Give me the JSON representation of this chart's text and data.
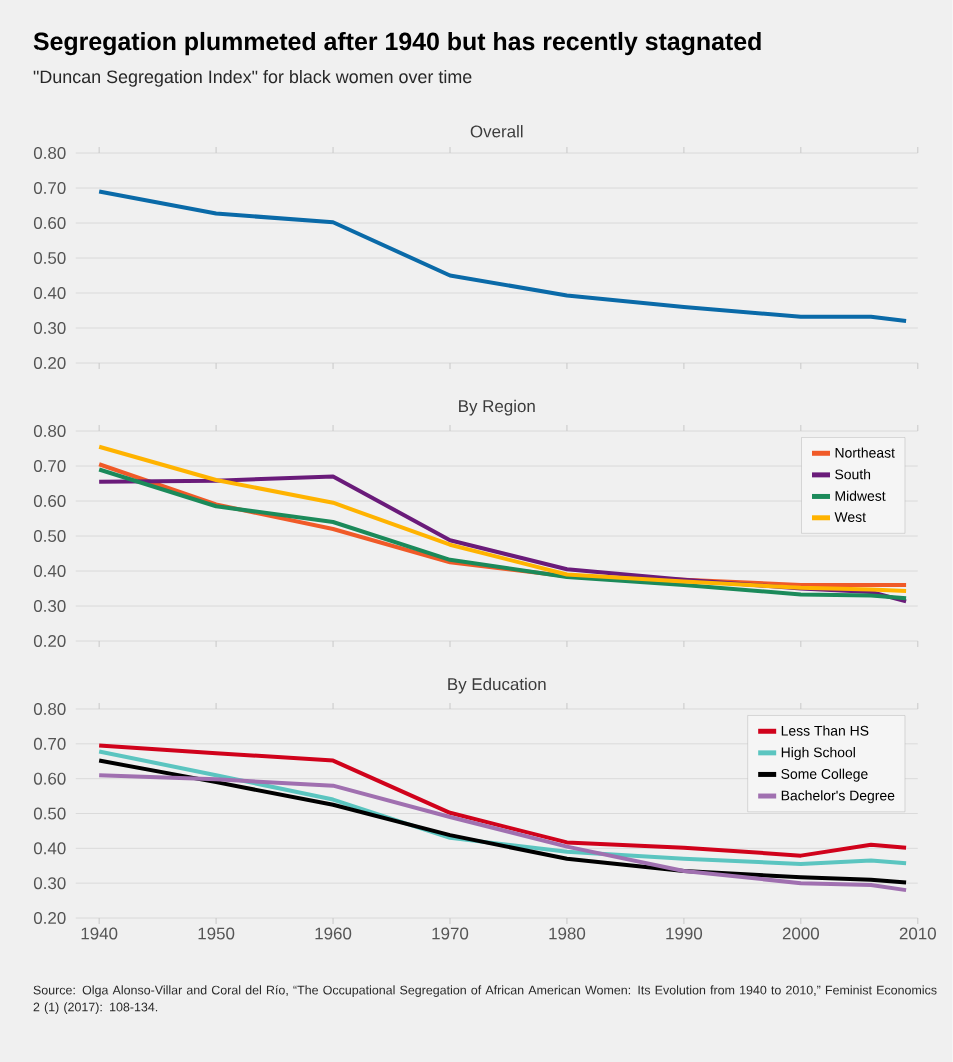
{
  "chart_data": [
    {
      "type": "line",
      "title": "Overall",
      "annotations": [
        "Segregation plummeted after 1940 but has recently stagnated",
        "\"Duncan Segregation Index\" for black women over time"
      ],
      "x": [
        1940,
        1950,
        1960,
        1970,
        1980,
        1990,
        2000,
        2006,
        2009
      ],
      "series": [
        {
          "color": "#0a6aa8",
          "values": [
            0.69,
            0.627,
            0.602,
            0.45,
            0.393,
            0.36,
            0.332,
            0.332,
            0.32
          ]
        }
      ],
      "xlim": [
        1938,
        2010
      ],
      "ylim": [
        0.2,
        0.8
      ],
      "xticks": [
        1940,
        1950,
        1960,
        1970,
        1980,
        1990,
        2000,
        2010
      ],
      "yticks": [
        {
          "value": 0.2,
          "label": "0.20"
        },
        {
          "value": 0.3,
          "label": "0.30"
        },
        {
          "value": 0.4,
          "label": "0.40"
        },
        {
          "value": 0.5,
          "label": "0.50"
        },
        {
          "value": 0.6,
          "label": "0.60"
        },
        {
          "value": 0.7,
          "label": "0.70"
        },
        {
          "value": 0.8,
          "label": "0.80"
        }
      ],
      "tick_labels": "y",
      "grid": "y",
      "legend": false
    },
    {
      "type": "line",
      "title": "By Region",
      "x": [
        1940,
        1950,
        1960,
        1970,
        1980,
        1990,
        2000,
        2006,
        2009
      ],
      "series": [
        {
          "name": "Northeast",
          "color": "#f05a28",
          "values": [
            0.705,
            0.59,
            0.52,
            0.425,
            0.385,
            0.375,
            0.36,
            0.36,
            0.36
          ]
        },
        {
          "name": "South",
          "color": "#6a1b7a",
          "values": [
            0.655,
            0.658,
            0.67,
            0.488,
            0.405,
            0.375,
            0.35,
            0.34,
            0.313
          ]
        },
        {
          "name": "Midwest",
          "color": "#1b8a5a",
          "values": [
            0.69,
            0.585,
            0.54,
            0.432,
            0.383,
            0.36,
            0.333,
            0.33,
            0.322
          ]
        },
        {
          "name": "West",
          "color": "#ffb300",
          "values": [
            0.755,
            0.66,
            0.595,
            0.475,
            0.39,
            0.37,
            0.352,
            0.347,
            0.343
          ]
        }
      ],
      "xlim": [
        1938,
        2010
      ],
      "ylim": [
        0.2,
        0.8
      ],
      "xticks": [
        1940,
        1950,
        1960,
        1970,
        1980,
        1990,
        2000,
        2010
      ],
      "yticks": [
        {
          "value": 0.2,
          "label": "0.20"
        },
        {
          "value": 0.3,
          "label": "0.30"
        },
        {
          "value": 0.4,
          "label": "0.40"
        },
        {
          "value": 0.5,
          "label": "0.50"
        },
        {
          "value": 0.6,
          "label": "0.60"
        },
        {
          "value": 0.7,
          "label": "0.70"
        },
        {
          "value": 0.8,
          "label": "0.80"
        }
      ],
      "tick_labels": "y",
      "grid": "y",
      "legend": "top right"
    },
    {
      "type": "line",
      "title": "By Education",
      "annotations": [
        "Source: Olga Alonso-Villar and Coral del Río, “The Occupational Segregation of African American Women: Its Evolution from 1940 to 2010,” Feminist Economics 2 (1) (2017): 108-134."
      ],
      "x": [
        1940,
        1950,
        1960,
        1970,
        1980,
        1990,
        2000,
        2006,
        2009
      ],
      "series": [
        {
          "name": "Less Than HS",
          "color": "#d0021b",
          "values": [
            0.695,
            0.673,
            0.652,
            0.502,
            0.417,
            0.402,
            0.379,
            0.41,
            0.402
          ]
        },
        {
          "name": "High School",
          "color": "#5bc5c0",
          "values": [
            0.678,
            0.61,
            0.54,
            0.43,
            0.39,
            0.37,
            0.355,
            0.365,
            0.357
          ]
        },
        {
          "name": "Some College",
          "color": "#000000",
          "values": [
            0.652,
            0.59,
            0.525,
            0.438,
            0.37,
            0.335,
            0.317,
            0.31,
            0.302
          ]
        },
        {
          "name": "Bachelor's Degree",
          "color": "#a070b0",
          "values": [
            0.61,
            0.598,
            0.58,
            0.49,
            0.405,
            0.335,
            0.3,
            0.295,
            0.28
          ]
        }
      ],
      "xlim": [
        1938,
        2010
      ],
      "ylim": [
        0.2,
        0.8
      ],
      "xticks": [
        1940,
        1950,
        1960,
        1970,
        1980,
        1990,
        2000,
        2010
      ],
      "yticks": [
        {
          "value": 0.2,
          "label": "0.20"
        },
        {
          "value": 0.3,
          "label": "0.30"
        },
        {
          "value": 0.4,
          "label": "0.40"
        },
        {
          "value": 0.5,
          "label": "0.50"
        },
        {
          "value": 0.6,
          "label": "0.60"
        },
        {
          "value": 0.7,
          "label": "0.70"
        },
        {
          "value": 0.8,
          "label": "0.80"
        }
      ],
      "grid": "y",
      "legend": "top right"
    }
  ]
}
